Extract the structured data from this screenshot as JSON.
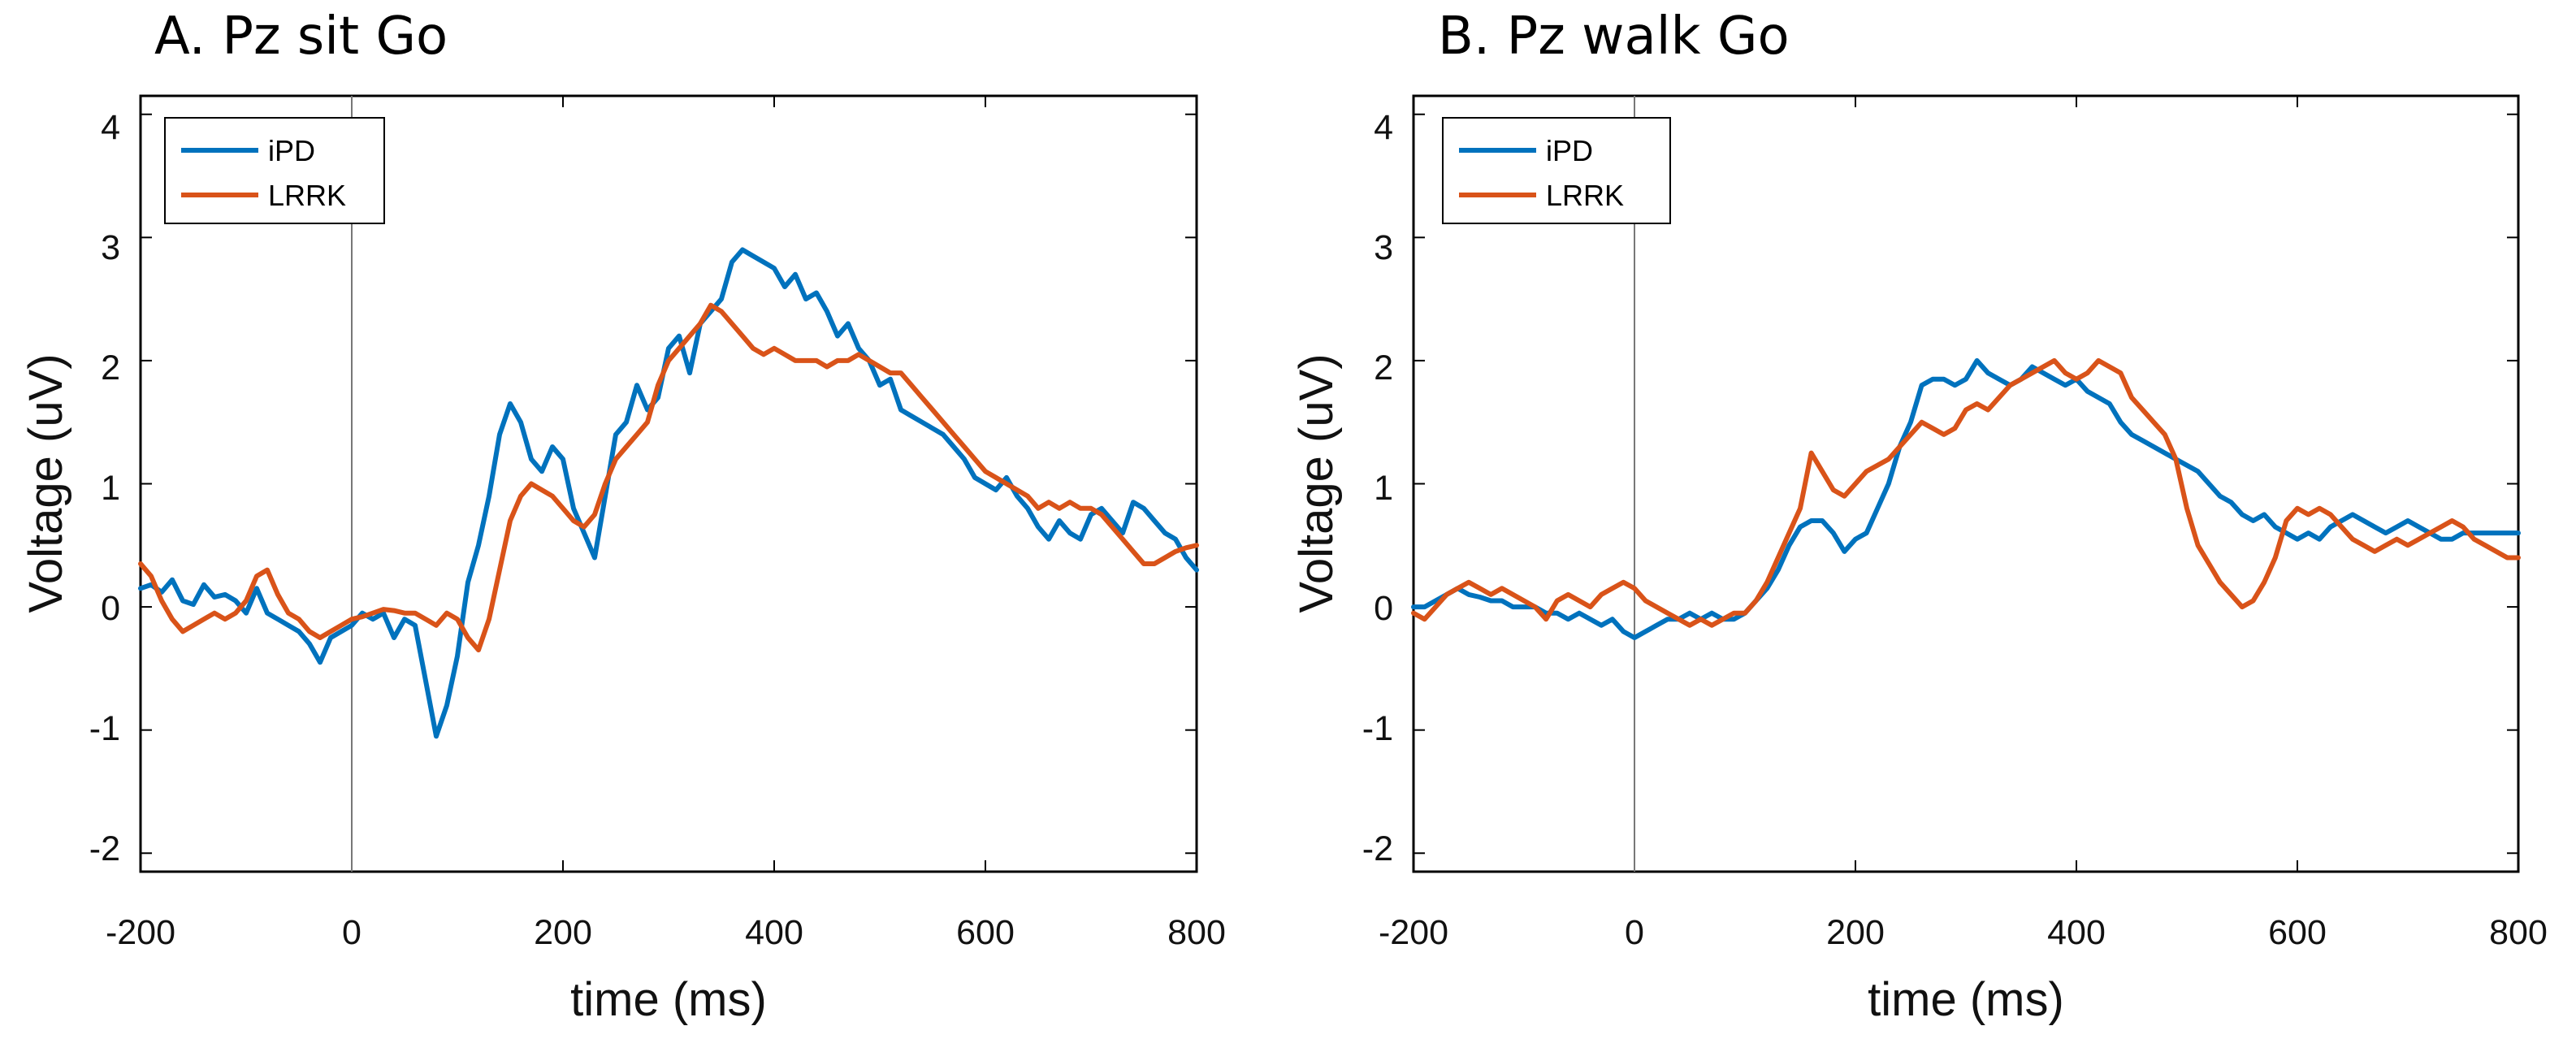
{
  "chart_data": [
    {
      "type": "line",
      "title": "A. Pz sit Go",
      "xlabel": "time (ms)",
      "ylabel": "Voltage (uV)",
      "xlim": [
        -200,
        800
      ],
      "ylim": [
        -2.15,
        4.15
      ],
      "xticks": [
        -200,
        0,
        200,
        400,
        600,
        800
      ],
      "xtick_labels": [
        "-200",
        "0",
        "200",
        "400",
        "600",
        "800"
      ],
      "yticks": [
        -2,
        -1,
        0,
        1,
        2,
        3,
        4
      ],
      "ytick_labels": [
        "-2",
        "-1",
        "0",
        "1",
        "2",
        "3",
        "4"
      ],
      "grid": false,
      "legend_position": "top-left",
      "vline_x": 0,
      "series": [
        {
          "name": "iPD",
          "color": "#0072BD",
          "x": [
            -200,
            -190,
            -180,
            -170,
            -160,
            -150,
            -140,
            -130,
            -120,
            -110,
            -100,
            -90,
            -80,
            -70,
            -60,
            -50,
            -40,
            -30,
            -20,
            -10,
            0,
            10,
            20,
            30,
            40,
            50,
            60,
            70,
            80,
            90,
            100,
            110,
            120,
            130,
            140,
            150,
            160,
            170,
            180,
            190,
            200,
            210,
            220,
            230,
            240,
            250,
            260,
            270,
            280,
            290,
            300,
            310,
            320,
            330,
            340,
            350,
            360,
            370,
            380,
            390,
            400,
            410,
            420,
            430,
            440,
            450,
            460,
            470,
            480,
            490,
            500,
            510,
            520,
            530,
            540,
            550,
            560,
            570,
            580,
            590,
            600,
            610,
            620,
            630,
            640,
            650,
            660,
            670,
            680,
            690,
            700,
            710,
            720,
            730,
            740,
            750,
            760,
            770,
            780,
            790,
            800
          ],
          "values": [
            0.15,
            0.18,
            0.12,
            0.22,
            0.05,
            0.02,
            0.18,
            0.08,
            0.1,
            0.05,
            -0.05,
            0.15,
            -0.05,
            -0.1,
            -0.15,
            -0.2,
            -0.3,
            -0.45,
            -0.25,
            -0.2,
            -0.15,
            -0.05,
            -0.1,
            -0.05,
            -0.25,
            -0.1,
            -0.15,
            -0.6,
            -1.05,
            -0.8,
            -0.4,
            0.2,
            0.5,
            0.9,
            1.4,
            1.65,
            1.5,
            1.2,
            1.1,
            1.3,
            1.2,
            0.8,
            0.6,
            0.4,
            0.9,
            1.4,
            1.5,
            1.8,
            1.6,
            1.7,
            2.1,
            2.2,
            1.9,
            2.3,
            2.4,
            2.5,
            2.8,
            2.9,
            2.85,
            2.8,
            2.75,
            2.6,
            2.7,
            2.5,
            2.55,
            2.4,
            2.2,
            2.3,
            2.1,
            2.0,
            1.8,
            1.85,
            1.6,
            1.55,
            1.5,
            1.45,
            1.4,
            1.3,
            1.2,
            1.05,
            1.0,
            0.95,
            1.05,
            0.9,
            0.8,
            0.65,
            0.55,
            0.7,
            0.6,
            0.55,
            0.75,
            0.8,
            0.7,
            0.6,
            0.85,
            0.8,
            0.7,
            0.6,
            0.55,
            0.4,
            0.3
          ]
        },
        {
          "name": "LRRK",
          "color": "#D95319",
          "x": [
            -200,
            -190,
            -180,
            -170,
            -160,
            -150,
            -140,
            -130,
            -120,
            -110,
            -100,
            -90,
            -80,
            -70,
            -60,
            -50,
            -40,
            -30,
            -20,
            -10,
            0,
            10,
            20,
            30,
            40,
            50,
            60,
            70,
            80,
            90,
            100,
            110,
            120,
            130,
            140,
            150,
            160,
            170,
            180,
            190,
            200,
            210,
            220,
            230,
            240,
            250,
            260,
            270,
            280,
            290,
            300,
            310,
            320,
            330,
            340,
            350,
            360,
            370,
            380,
            390,
            400,
            410,
            420,
            430,
            440,
            450,
            460,
            470,
            480,
            490,
            500,
            510,
            520,
            530,
            540,
            550,
            560,
            570,
            580,
            590,
            600,
            610,
            620,
            630,
            640,
            650,
            660,
            670,
            680,
            690,
            700,
            710,
            720,
            730,
            740,
            750,
            760,
            770,
            780,
            790,
            800
          ],
          "values": [
            0.35,
            0.25,
            0.05,
            -0.1,
            -0.2,
            -0.15,
            -0.1,
            -0.05,
            -0.1,
            -0.05,
            0.05,
            0.25,
            0.3,
            0.1,
            -0.05,
            -0.1,
            -0.2,
            -0.25,
            -0.2,
            -0.15,
            -0.1,
            -0.08,
            -0.05,
            -0.02,
            -0.03,
            -0.05,
            -0.05,
            -0.1,
            -0.15,
            -0.05,
            -0.1,
            -0.25,
            -0.35,
            -0.1,
            0.3,
            0.7,
            0.9,
            1.0,
            0.95,
            0.9,
            0.8,
            0.7,
            0.65,
            0.75,
            1.0,
            1.2,
            1.3,
            1.4,
            1.5,
            1.8,
            2.0,
            2.1,
            2.2,
            2.3,
            2.45,
            2.4,
            2.3,
            2.2,
            2.1,
            2.05,
            2.1,
            2.05,
            2.0,
            2.0,
            2.0,
            1.95,
            2.0,
            2.0,
            2.05,
            2.0,
            1.95,
            1.9,
            1.9,
            1.8,
            1.7,
            1.6,
            1.5,
            1.4,
            1.3,
            1.2,
            1.1,
            1.05,
            1.0,
            0.95,
            0.9,
            0.8,
            0.85,
            0.8,
            0.85,
            0.8,
            0.8,
            0.75,
            0.65,
            0.55,
            0.45,
            0.35,
            0.35,
            0.4,
            0.45,
            0.48,
            0.5
          ]
        }
      ]
    },
    {
      "type": "line",
      "title": "B. Pz walk Go",
      "xlabel": "time (ms)",
      "ylabel": "Voltage (uV)",
      "xlim": [
        -200,
        800
      ],
      "ylim": [
        -2.15,
        4.15
      ],
      "xticks": [
        -200,
        0,
        200,
        400,
        600,
        800
      ],
      "xtick_labels": [
        "-200",
        "0",
        "200",
        "400",
        "600",
        "800"
      ],
      "yticks": [
        -2,
        -1,
        0,
        1,
        2,
        3,
        4
      ],
      "ytick_labels": [
        "-2",
        "-1",
        "0",
        "1",
        "2",
        "3",
        "4"
      ],
      "grid": false,
      "legend_position": "top-left",
      "vline_x": 0,
      "series": [
        {
          "name": "iPD",
          "color": "#0072BD",
          "x": [
            -200,
            -190,
            -180,
            -170,
            -160,
            -150,
            -140,
            -130,
            -120,
            -110,
            -100,
            -90,
            -80,
            -70,
            -60,
            -50,
            -40,
            -30,
            -20,
            -10,
            0,
            10,
            20,
            30,
            40,
            50,
            60,
            70,
            80,
            90,
            100,
            110,
            120,
            130,
            140,
            150,
            160,
            170,
            180,
            190,
            200,
            210,
            220,
            230,
            240,
            250,
            260,
            270,
            280,
            290,
            300,
            310,
            320,
            330,
            340,
            350,
            360,
            370,
            380,
            390,
            400,
            410,
            420,
            430,
            440,
            450,
            460,
            470,
            480,
            490,
            500,
            510,
            520,
            530,
            540,
            550,
            560,
            570,
            580,
            590,
            600,
            610,
            620,
            630,
            640,
            650,
            660,
            670,
            680,
            690,
            700,
            710,
            720,
            730,
            740,
            750,
            760,
            770,
            780,
            790,
            800
          ],
          "values": [
            0.0,
            0.0,
            0.05,
            0.1,
            0.15,
            0.1,
            0.08,
            0.05,
            0.05,
            0.0,
            0.0,
            0.0,
            -0.05,
            -0.05,
            -0.1,
            -0.05,
            -0.1,
            -0.15,
            -0.1,
            -0.2,
            -0.25,
            -0.2,
            -0.15,
            -0.1,
            -0.1,
            -0.05,
            -0.1,
            -0.05,
            -0.1,
            -0.1,
            -0.05,
            0.05,
            0.15,
            0.3,
            0.5,
            0.65,
            0.7,
            0.7,
            0.6,
            0.45,
            0.55,
            0.6,
            0.8,
            1.0,
            1.3,
            1.5,
            1.8,
            1.85,
            1.85,
            1.8,
            1.85,
            2.0,
            1.9,
            1.85,
            1.8,
            1.85,
            1.95,
            1.9,
            1.85,
            1.8,
            1.85,
            1.75,
            1.7,
            1.65,
            1.5,
            1.4,
            1.35,
            1.3,
            1.25,
            1.2,
            1.15,
            1.1,
            1.0,
            0.9,
            0.85,
            0.75,
            0.7,
            0.75,
            0.65,
            0.6,
            0.55,
            0.6,
            0.55,
            0.65,
            0.7,
            0.75,
            0.7,
            0.65,
            0.6,
            0.65,
            0.7,
            0.65,
            0.6,
            0.55,
            0.55,
            0.6,
            0.6,
            0.6,
            0.6,
            0.6,
            0.6
          ]
        },
        {
          "name": "LRRK",
          "color": "#D95319",
          "x": [
            -200,
            -190,
            -180,
            -170,
            -160,
            -150,
            -140,
            -130,
            -120,
            -110,
            -100,
            -90,
            -80,
            -70,
            -60,
            -50,
            -40,
            -30,
            -20,
            -10,
            0,
            10,
            20,
            30,
            40,
            50,
            60,
            70,
            80,
            90,
            100,
            110,
            120,
            130,
            140,
            150,
            160,
            170,
            180,
            190,
            200,
            210,
            220,
            230,
            240,
            250,
            260,
            270,
            280,
            290,
            300,
            310,
            320,
            330,
            340,
            350,
            360,
            370,
            380,
            390,
            400,
            410,
            420,
            430,
            440,
            450,
            460,
            470,
            480,
            490,
            500,
            510,
            520,
            530,
            540,
            550,
            560,
            570,
            580,
            590,
            600,
            610,
            620,
            630,
            640,
            650,
            660,
            670,
            680,
            690,
            700,
            710,
            720,
            730,
            740,
            750,
            760,
            770,
            780,
            790,
            800
          ],
          "values": [
            -0.05,
            -0.1,
            0.0,
            0.1,
            0.15,
            0.2,
            0.15,
            0.1,
            0.15,
            0.1,
            0.05,
            0.0,
            -0.1,
            0.05,
            0.1,
            0.05,
            0.0,
            0.1,
            0.15,
            0.2,
            0.15,
            0.05,
            0.0,
            -0.05,
            -0.1,
            -0.15,
            -0.1,
            -0.15,
            -0.1,
            -0.05,
            -0.05,
            0.05,
            0.2,
            0.4,
            0.6,
            0.8,
            1.25,
            1.1,
            0.95,
            0.9,
            1.0,
            1.1,
            1.15,
            1.2,
            1.3,
            1.4,
            1.5,
            1.45,
            1.4,
            1.45,
            1.6,
            1.65,
            1.6,
            1.7,
            1.8,
            1.85,
            1.9,
            1.95,
            2.0,
            1.9,
            1.85,
            1.9,
            2.0,
            1.95,
            1.9,
            1.7,
            1.6,
            1.5,
            1.4,
            1.2,
            0.8,
            0.5,
            0.35,
            0.2,
            0.1,
            0.0,
            0.05,
            0.2,
            0.4,
            0.7,
            0.8,
            0.75,
            0.8,
            0.75,
            0.65,
            0.55,
            0.5,
            0.45,
            0.5,
            0.55,
            0.5,
            0.55,
            0.6,
            0.65,
            0.7,
            0.65,
            0.55,
            0.5,
            0.45,
            0.4,
            0.4
          ]
        }
      ]
    }
  ]
}
